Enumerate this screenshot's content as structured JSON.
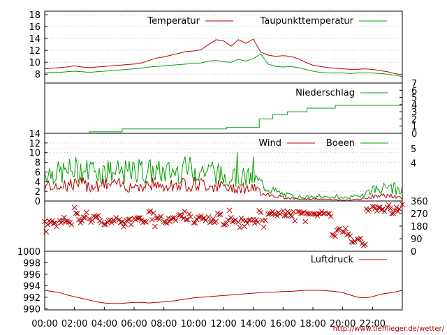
{
  "credit_url": "http://www.tiefflieger.de/wetter/",
  "colors": {
    "red": "#b40000",
    "green": "#00a000",
    "grid": "#c0c0c0",
    "axis": "#000000"
  },
  "chart_data": [
    {
      "type": "line",
      "panel": "temperature",
      "x_hours": [
        0,
        0.5,
        1,
        1.5,
        2,
        2.5,
        3,
        3.5,
        4,
        4.5,
        5,
        5.5,
        6,
        6.5,
        7,
        7.5,
        8,
        8.5,
        9,
        9.5,
        10,
        10.5,
        11,
        11.5,
        12,
        12.5,
        13,
        13.5,
        14,
        14.5,
        15,
        15.5,
        16,
        16.5,
        17,
        17.5,
        18,
        18.5,
        19,
        19.5,
        20,
        20.5,
        21,
        21.5,
        22,
        22.5,
        23,
        23.5,
        24
      ],
      "series": [
        {
          "name": "Temperatur",
          "color": "#b40000",
          "values": [
            8.9,
            9.0,
            9.1,
            9.2,
            9.4,
            9.2,
            9.1,
            9.2,
            9.3,
            9.4,
            9.5,
            9.6,
            9.7,
            9.9,
            10.3,
            10.7,
            10.9,
            11.2,
            11.5,
            11.8,
            11.9,
            12.1,
            13.0,
            13.8,
            13.6,
            12.7,
            13.8,
            13.2,
            13.9,
            11.7,
            11.2,
            11.0,
            11.1,
            11.0,
            10.6,
            10.0,
            9.5,
            9.3,
            9.1,
            9.0,
            8.9,
            8.8,
            8.8,
            8.9,
            8.8,
            8.6,
            8.4,
            8.1,
            7.9
          ]
        },
        {
          "name": "Taupunkttemperatur",
          "color": "#00a000",
          "values": [
            8.2,
            8.3,
            8.3,
            8.4,
            8.5,
            8.4,
            8.3,
            8.4,
            8.5,
            8.6,
            8.7,
            8.8,
            8.9,
            9.0,
            9.2,
            9.3,
            9.4,
            9.5,
            9.6,
            9.7,
            9.8,
            9.9,
            10.2,
            10.3,
            10.1,
            10.0,
            10.5,
            10.2,
            10.6,
            11.4,
            9.7,
            9.3,
            9.2,
            9.3,
            9.1,
            8.8,
            8.5,
            8.3,
            8.2,
            8.2,
            8.2,
            8.1,
            8.2,
            8.2,
            8.2,
            8.1,
            8.0,
            7.8,
            7.6
          ]
        }
      ],
      "yticks": [
        8,
        10,
        12,
        14,
        16,
        18
      ],
      "ylim": [
        6.5,
        18.6
      ]
    },
    {
      "type": "line",
      "panel": "precipitation",
      "series": [
        {
          "name": "Niederschlag",
          "color": "#00a000",
          "steps": [
            [
              0,
              0
            ],
            [
              3,
              0.2
            ],
            [
              5.2,
              0.6
            ],
            [
              12,
              0.6
            ],
            [
              12.2,
              0.8
            ],
            [
              14.1,
              0.8
            ],
            [
              14.4,
              2.0
            ],
            [
              15.3,
              2.6
            ],
            [
              16.3,
              3.0
            ],
            [
              17.6,
              3.5
            ],
            [
              19.5,
              3.9
            ],
            [
              24,
              4.0
            ]
          ]
        }
      ],
      "yticks": [
        0,
        1,
        2,
        3,
        4,
        5,
        6,
        7
      ],
      "ylim": [
        0,
        7
      ]
    },
    {
      "type": "line",
      "panel": "wind",
      "series": [
        {
          "name": "Wind",
          "color": "#b40000"
        },
        {
          "name": "Boeen",
          "color": "#00a000"
        }
      ],
      "yticks": [
        0,
        2,
        4,
        6,
        8,
        10,
        12,
        14
      ],
      "ylim": [
        0,
        14
      ],
      "right_marks": [
        {
          "label": "5",
          "value": 10.8
        },
        {
          "label": "4",
          "value": 7.9
        }
      ],
      "envelope_hours": [
        0,
        1,
        2,
        3,
        4,
        5,
        6,
        7,
        8,
        9,
        10,
        11,
        12,
        13,
        14,
        15,
        16,
        17,
        18,
        19,
        20,
        21,
        22,
        23,
        24
      ],
      "wind_mean": [
        3.2,
        3.5,
        3.4,
        3.3,
        3.4,
        3.3,
        3.2,
        3.4,
        3.3,
        3.5,
        3.6,
        3.3,
        3.0,
        2.8,
        2.5,
        1.4,
        0.8,
        0.4,
        0.4,
        0.3,
        0.2,
        0.3,
        0.9,
        1.2,
        0.5
      ],
      "gust_mean": [
        5.8,
        5.5,
        6.2,
        6.0,
        5.8,
        5.6,
        5.7,
        5.9,
        5.6,
        6.0,
        6.4,
        5.8,
        5.0,
        4.8,
        4.5,
        2.5,
        1.3,
        0.8,
        0.7,
        0.8,
        0.6,
        0.9,
        2.3,
        2.6,
        1.6
      ]
    },
    {
      "type": "scatter",
      "panel": "wind_direction",
      "color": "#b40000",
      "yticks": [
        0,
        90,
        180,
        270,
        360
      ],
      "ylim": [
        0,
        360
      ],
      "hours": [
        0,
        0.3,
        0.6,
        1.0,
        1.3,
        1.6,
        2.0,
        2.3,
        2.6,
        3.0,
        3.3,
        3.6,
        4.0,
        4.3,
        4.6,
        5.0,
        5.3,
        5.6,
        6.0,
        6.3,
        6.6,
        7.0,
        7.3,
        7.6,
        8.0,
        8.3,
        8.6,
        9.0,
        9.3,
        9.6,
        10.0,
        10.3,
        10.6,
        11.0,
        11.3,
        11.6,
        12.0,
        12.3,
        12.6,
        13.0,
        13.3,
        13.6,
        14.0,
        14.3,
        14.6,
        15.0,
        15.3,
        15.6,
        16.0,
        16.3,
        16.6,
        17.0,
        17.3,
        17.6,
        18.0,
        18.3,
        18.6,
        19.0,
        19.3,
        19.6,
        20.0,
        20.3,
        20.6,
        21.0,
        21.3,
        21.6,
        22.0,
        22.3,
        22.6,
        23.0,
        23.3,
        23.6,
        24.0
      ],
      "degrees": [
        200,
        210,
        190,
        215,
        230,
        200,
        280,
        210,
        230,
        220,
        240,
        210,
        200,
        215,
        230,
        220,
        205,
        240,
        225,
        230,
        215,
        280,
        230,
        240,
        210,
        225,
        235,
        260,
        230,
        220,
        215,
        240,
        230,
        225,
        220,
        270,
        200,
        240,
        220,
        225,
        230,
        210,
        215,
        220,
        230,
        280,
        270,
        260,
        250,
        270,
        275,
        270,
        280,
        275,
        270,
        265,
        275,
        260,
        120,
        160,
        150,
        110,
        70,
        90,
        40,
        300,
        320,
        300,
        290,
        310,
        280,
        300,
        350
      ]
    },
    {
      "type": "line",
      "panel": "pressure",
      "series": [
        {
          "name": "Luftdruck",
          "color": "#b40000",
          "values": [
            993.2,
            993.0,
            992.8,
            992.4,
            992.1,
            991.8,
            991.5,
            991.2,
            991.0,
            990.9,
            990.9,
            991.0,
            991.1,
            991.1,
            991.0,
            991.1,
            991.2,
            991.3,
            991.5,
            991.7,
            991.9,
            992.0,
            992.1,
            992.2,
            992.3,
            992.4,
            992.5,
            992.6,
            992.7,
            992.8,
            992.9,
            992.9,
            993.0,
            993.0,
            993.1,
            993.2,
            993.2,
            993.2,
            993.1,
            993.0,
            992.8,
            992.4,
            992.0,
            991.9,
            992.1,
            992.5,
            992.7,
            992.9,
            993.2
          ]
        }
      ],
      "yticks": [
        990,
        992,
        994,
        996,
        998,
        1000
      ],
      "ylim": [
        989.8,
        1000
      ]
    }
  ],
  "x_axis": {
    "range_hours": [
      0,
      24
    ],
    "tick_labels": [
      "00:00",
      "02:00",
      "04:00",
      "06:00",
      "08:00",
      "10:00",
      "12:00",
      "14:00",
      "16:00",
      "18:00",
      "20:00",
      "22:00"
    ]
  }
}
